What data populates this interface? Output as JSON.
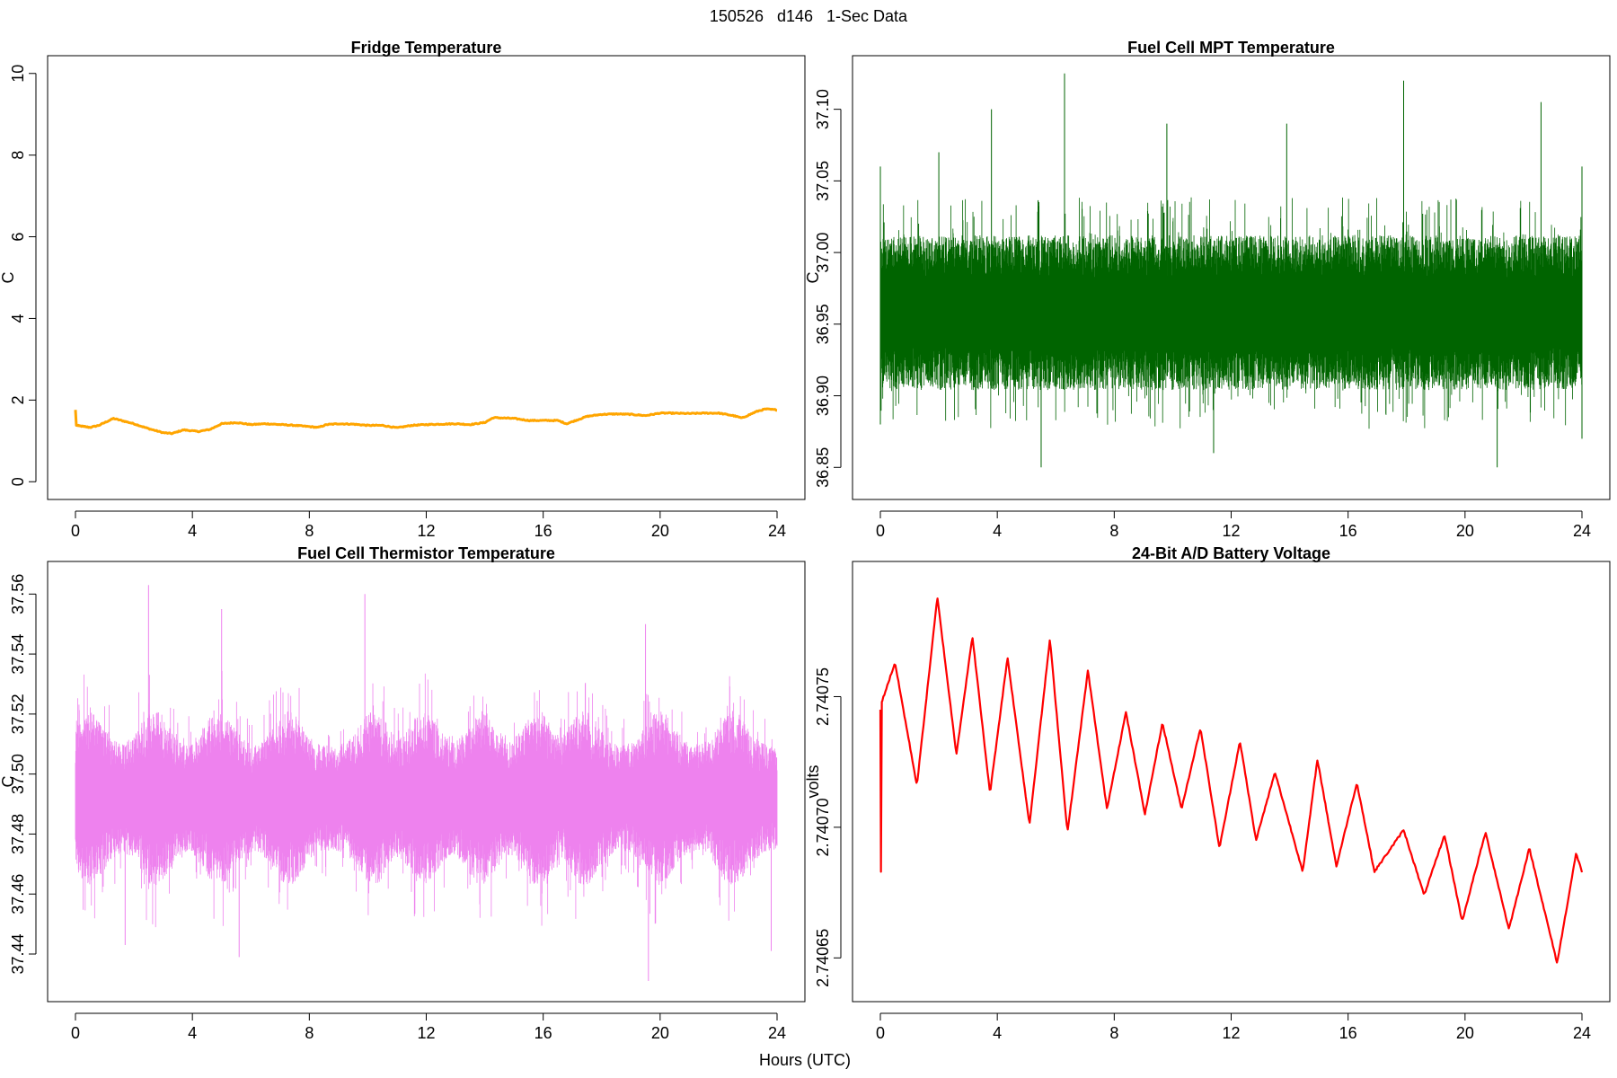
{
  "figure": {
    "title": "150526   d146   1-Sec Data",
    "xlabel": "Hours (UTC)"
  },
  "chart_data": [
    {
      "type": "line",
      "title": "Fridge Temperature",
      "ylabel": "C",
      "xlabel": "",
      "xlim": [
        0,
        24
      ],
      "ylim": [
        0,
        10
      ],
      "x_ticks": [
        0,
        4,
        8,
        12,
        16,
        20,
        24
      ],
      "y_ticks": [
        0,
        2,
        4,
        6,
        8,
        10
      ],
      "y_tick_labels": [
        "0",
        "2",
        "4",
        "6",
        "8",
        "10"
      ],
      "color": "#FFA500",
      "series": [
        {
          "x": [
            0,
            0.03,
            0.5,
            0.8,
            1.3,
            2,
            2.5,
            3,
            3.3,
            3.7,
            4.2,
            4.6,
            5,
            5.5,
            6,
            6.5,
            7,
            7.5,
            8,
            8.3,
            8.6,
            9,
            9.5,
            10,
            10.5,
            11,
            11.5,
            12,
            13,
            13.5,
            14,
            14.3,
            15,
            15.5,
            16,
            16.5,
            16.8,
            17.5,
            18,
            18.5,
            19,
            19.5,
            20,
            20.3,
            21,
            21.5,
            22,
            22.5,
            22.8,
            23.3,
            23.6,
            24
          ],
          "y": [
            1.76,
            1.38,
            1.33,
            1.38,
            1.55,
            1.42,
            1.3,
            1.2,
            1.18,
            1.27,
            1.23,
            1.28,
            1.42,
            1.45,
            1.4,
            1.42,
            1.4,
            1.38,
            1.35,
            1.33,
            1.4,
            1.42,
            1.41,
            1.38,
            1.38,
            1.32,
            1.38,
            1.4,
            1.42,
            1.4,
            1.45,
            1.57,
            1.55,
            1.5,
            1.5,
            1.5,
            1.42,
            1.6,
            1.65,
            1.66,
            1.65,
            1.62,
            1.68,
            1.68,
            1.67,
            1.68,
            1.68,
            1.62,
            1.56,
            1.72,
            1.78,
            1.76
          ]
        }
      ]
    },
    {
      "type": "line",
      "title": "Fuel Cell MPT Temperature",
      "ylabel": "C",
      "xlabel": "",
      "xlim": [
        0,
        24
      ],
      "ylim": [
        36.84,
        37.125
      ],
      "x_ticks": [
        0,
        4,
        8,
        12,
        16,
        20,
        24
      ],
      "y_ticks": [
        36.85,
        36.9,
        36.95,
        37.0,
        37.05,
        37.1
      ],
      "y_tick_labels": [
        "36.85",
        "36.90",
        "36.95",
        "37.00",
        "37.05",
        "37.10"
      ],
      "color": "#006400",
      "noise": {
        "center": 36.958,
        "core_amplitude": 0.045,
        "peak_max": [
          [
            0,
            37.06
          ],
          [
            2,
            37.07
          ],
          [
            3.8,
            37.1
          ],
          [
            6.3,
            37.125
          ],
          [
            9.8,
            37.09
          ],
          [
            13.9,
            37.09
          ],
          [
            17.9,
            37.12
          ],
          [
            22.6,
            37.105
          ],
          [
            24,
            37.06
          ]
        ],
        "trough_min": [
          [
            0,
            36.88
          ],
          [
            5.5,
            36.85
          ],
          [
            11.4,
            36.86
          ],
          [
            21.1,
            36.85
          ],
          [
            24,
            36.87
          ]
        ]
      }
    },
    {
      "type": "line",
      "title": "Fuel Cell Thermistor Temperature",
      "ylabel": "C",
      "xlabel": "",
      "xlim": [
        0,
        24
      ],
      "ylim": [
        37.43,
        37.565
      ],
      "x_ticks": [
        0,
        4,
        8,
        12,
        16,
        20,
        24
      ],
      "y_ticks": [
        37.44,
        37.46,
        37.48,
        37.5,
        37.52,
        37.54,
        37.56
      ],
      "y_tick_labels": [
        "37.44",
        "37.46",
        "37.48",
        "37.50",
        "37.52",
        "37.54",
        "37.56"
      ],
      "color": "#EE82EE",
      "noise": {
        "center": 37.492,
        "core_amplitude": 0.018,
        "envelope_peaks_hours": [
          0.5,
          2.7,
          4.9,
          7.3,
          10.2,
          11.9,
          13.9,
          15.8,
          17.4,
          20,
          22.5
        ],
        "peak_max": [
          [
            2.5,
            37.563
          ],
          [
            5,
            37.555
          ],
          [
            9.9,
            37.56
          ],
          [
            19.5,
            37.55
          ]
        ],
        "trough_min": [
          [
            1.7,
            37.443
          ],
          [
            5.6,
            37.439
          ],
          [
            19.6,
            37.431
          ],
          [
            23.8,
            37.441
          ]
        ]
      }
    },
    {
      "type": "line",
      "title": "24-Bit A/D Battery Voltage",
      "ylabel": "volts",
      "xlabel": "",
      "xlim": [
        0,
        24
      ],
      "ylim": [
        2.74064,
        2.740795
      ],
      "x_ticks": [
        0,
        4,
        8,
        12,
        16,
        20,
        24
      ],
      "y_ticks": [
        2.74065,
        2.7407,
        2.74075
      ],
      "y_tick_labels": [
        "2.74065",
        "2.74070",
        "2.74075"
      ],
      "color": "#FF0000",
      "series": [
        {
          "x": [
            0,
            0.02,
            0.05,
            0.5,
            1.25,
            1.95,
            2.6,
            3.15,
            3.75,
            4.35,
            5.1,
            5.8,
            6.4,
            7.1,
            7.75,
            8.4,
            9.05,
            9.65,
            10.3,
            10.95,
            11.6,
            12.3,
            12.85,
            13.5,
            14.45,
            14.95,
            15.6,
            16.3,
            16.9,
            17.9,
            18.6,
            19.3,
            19.9,
            20.7,
            21.5,
            22.2,
            23.15,
            23.8,
            24
          ],
          "y": [
            2.740745,
            2.740683,
            2.740748,
            2.740763,
            2.740716,
            2.740788,
            2.740728,
            2.740773,
            2.740713,
            2.740765,
            2.740701,
            2.740772,
            2.740698,
            2.74076,
            2.740707,
            2.740744,
            2.740705,
            2.74074,
            2.740707,
            2.740738,
            2.740692,
            2.740733,
            2.740695,
            2.740721,
            2.740683,
            2.740726,
            2.740685,
            2.740717,
            2.740683,
            2.740699,
            2.740674,
            2.740697,
            2.740664,
            2.740698,
            2.740661,
            2.740692,
            2.740648,
            2.74069,
            2.740683
          ]
        }
      ]
    }
  ]
}
